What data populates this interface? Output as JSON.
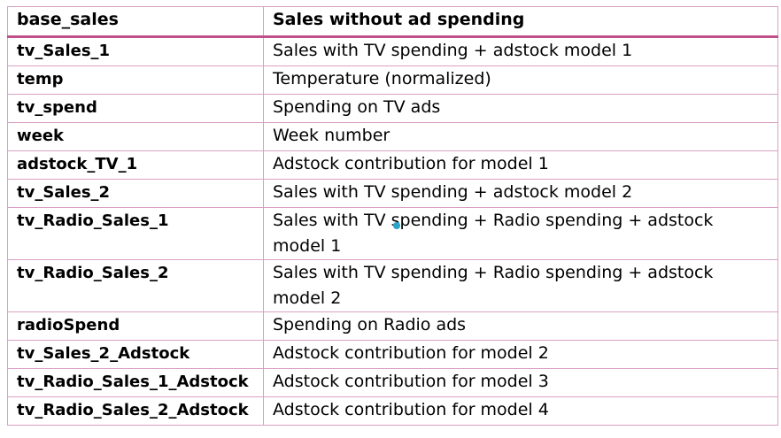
{
  "header": {
    "name": "base_sales",
    "description": "Sales without ad spending"
  },
  "rows": [
    {
      "name": "tv_Sales_1",
      "description": "Sales with TV spending + adstock model 1"
    },
    {
      "name": "temp",
      "description": "Temperature (normalized)"
    },
    {
      "name": "tv_spend",
      "description": "Spending on TV ads"
    },
    {
      "name": "week",
      "description": "Week number"
    },
    {
      "name": "adstock_TV_1",
      "description": "Adstock contribution for model 1"
    },
    {
      "name": "tv_Sales_2",
      "description": "Sales with TV spending + adstock model 2"
    },
    {
      "name": "tv_Radio_Sales_1",
      "description": "Sales with TV spending + Radio spending + adstock model 1"
    },
    {
      "name": "tv_Radio_Sales_2",
      "description": "Sales with TV spending + Radio spending + adstock model 2"
    },
    {
      "name": "radioSpend",
      "description": "Spending on Radio ads"
    },
    {
      "name": "tv_Sales_2_Adstock",
      "description": "Adstock contribution for model 2"
    },
    {
      "name": "tv_Radio_Sales_1_Adstock",
      "description": "Adstock contribution for model 3"
    },
    {
      "name": "tv_Radio_Sales_2_Adstock",
      "description": "Adstock contribution for model 4"
    }
  ],
  "colors": {
    "border": "#d8a1c4",
    "header_rule": "#c0508a",
    "cursor_dot": "#29a3c8"
  }
}
